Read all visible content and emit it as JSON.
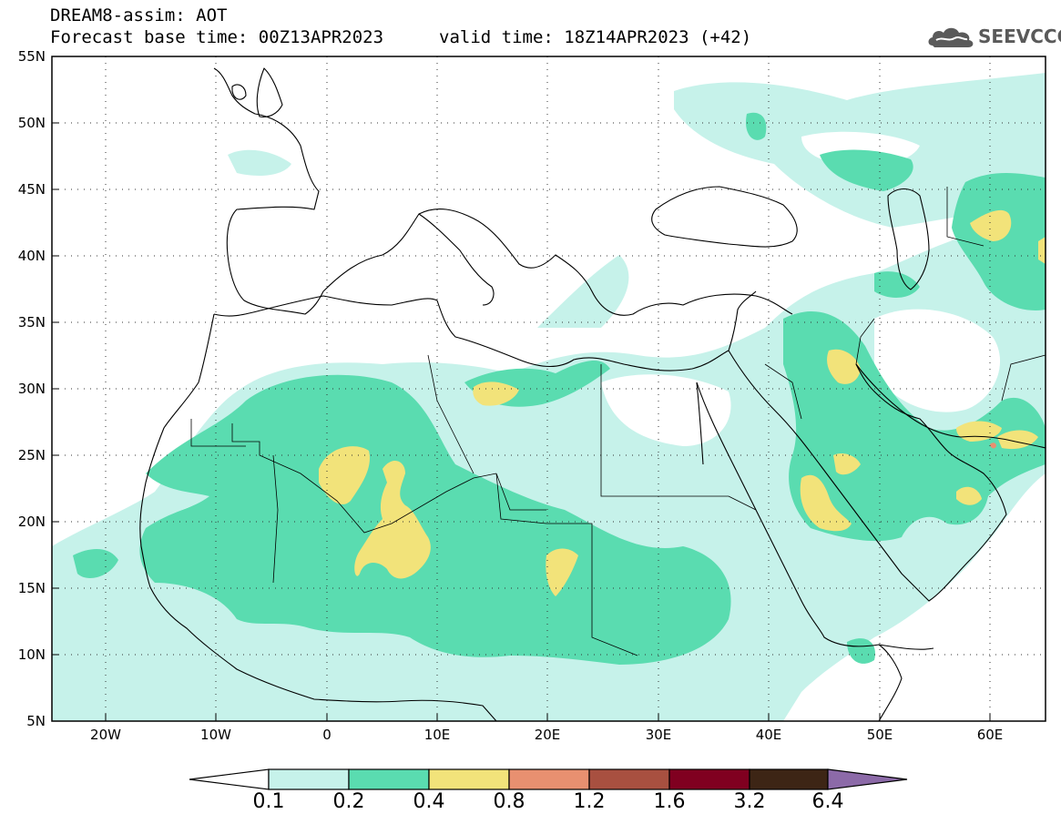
{
  "title": {
    "line1": "DREAM8-assim: AOT",
    "base_time": "Forecast base time: 00Z13APR2023",
    "valid_time": "valid time: 18Z14APR2023 (+42)"
  },
  "logo": {
    "icon": "cloud-logo-icon",
    "text": "SEEVCCC"
  },
  "axes": {
    "lat_labels": [
      "55N",
      "50N",
      "45N",
      "40N",
      "35N",
      "30N",
      "25N",
      "20N",
      "15N",
      "10N",
      "5N"
    ],
    "lon_labels": [
      "20W",
      "10W",
      "0",
      "10E",
      "20E",
      "30E",
      "40E",
      "50E",
      "60E"
    ]
  },
  "colorbar": {
    "labels": [
      "0.1",
      "0.2",
      "0.4",
      "0.8",
      "1.2",
      "1.6",
      "3.2",
      "6.4"
    ],
    "colors": [
      "#ffffff",
      "#c6f2ea",
      "#5adcb0",
      "#f2e37a",
      "#e89070",
      "#a85040",
      "#800020",
      "#3d2515",
      "#8c6aa8"
    ]
  },
  "legend_colors": {
    "low": "#c6f2ea",
    "mid": "#5adcb0",
    "high": "#f2e37a",
    "peak": "#e89070"
  }
}
